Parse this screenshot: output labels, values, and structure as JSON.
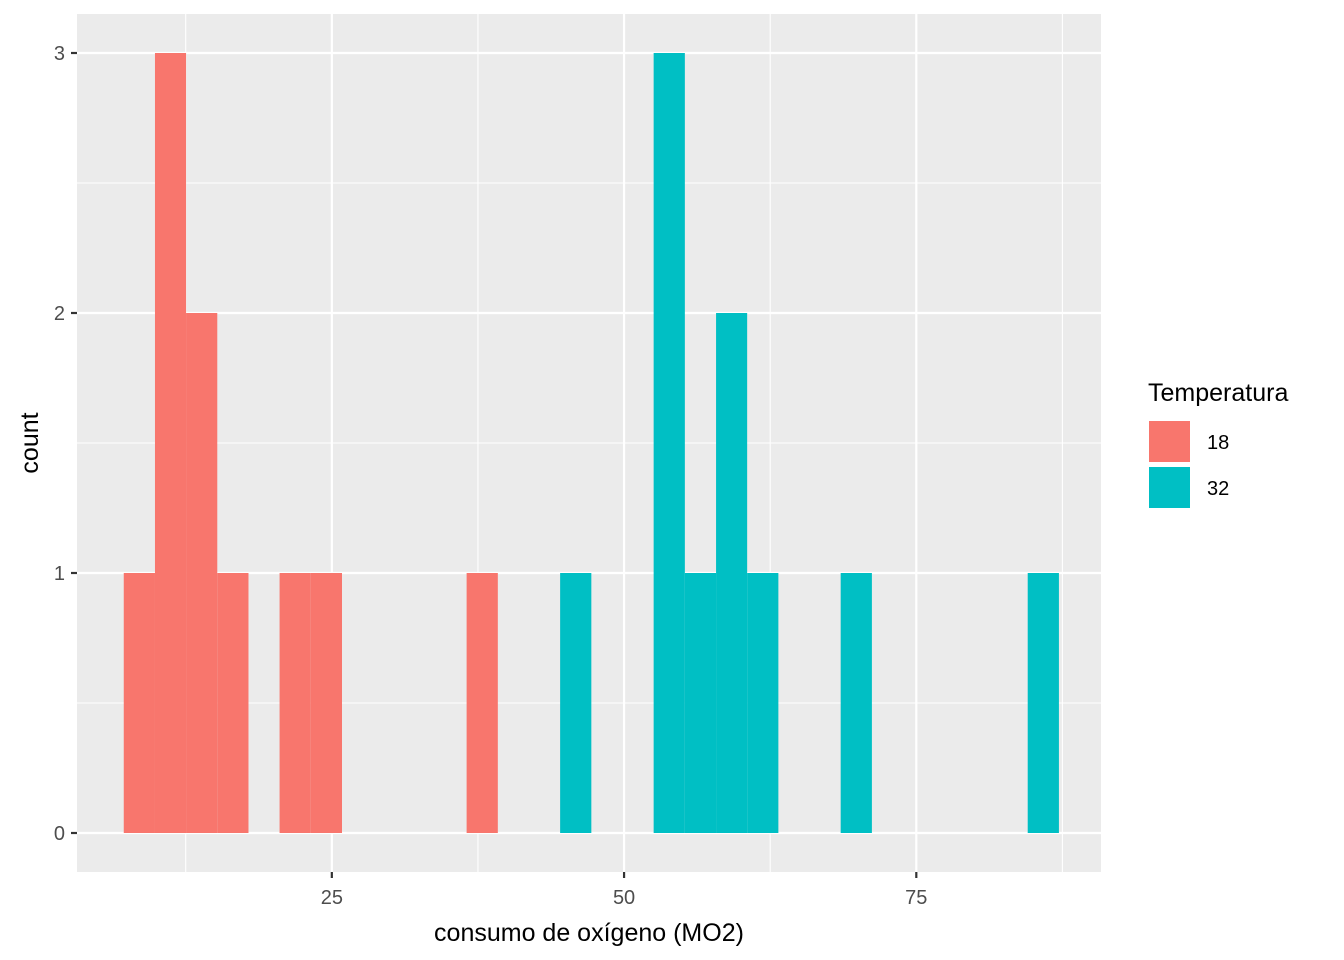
{
  "chart_data": {
    "type": "bar",
    "subtype": "stacked-histogram",
    "title": "",
    "xlabel": "consumo de oxígeno (MO2)",
    "ylabel": "count",
    "xlim": [
      3.2,
      90.8
    ],
    "ylim": [
      -0.15,
      3.15
    ],
    "x_ticks": [
      25,
      50,
      75
    ],
    "y_ticks": [
      0,
      1,
      2,
      3
    ],
    "grid": true,
    "legend": {
      "title": "Temperatura",
      "position": "right"
    },
    "bin_width": 2.67,
    "series": [
      {
        "name": "18",
        "color": "#F8766D",
        "bins": [
          {
            "x0": 7.2,
            "x1": 9.87,
            "count": 1
          },
          {
            "x0": 9.87,
            "x1": 12.53,
            "count": 3
          },
          {
            "x0": 12.53,
            "x1": 15.2,
            "count": 2
          },
          {
            "x0": 15.2,
            "x1": 17.87,
            "count": 1
          },
          {
            "x0": 20.53,
            "x1": 23.2,
            "count": 1
          },
          {
            "x0": 23.2,
            "x1": 25.87,
            "count": 1
          },
          {
            "x0": 36.53,
            "x1": 39.2,
            "count": 1
          }
        ]
      },
      {
        "name": "32",
        "color": "#00BFC4",
        "bins": [
          {
            "x0": 44.53,
            "x1": 47.2,
            "count": 1
          },
          {
            "x0": 52.53,
            "x1": 55.2,
            "count": 3
          },
          {
            "x0": 55.2,
            "x1": 57.87,
            "count": 1
          },
          {
            "x0": 57.87,
            "x1": 60.53,
            "count": 2
          },
          {
            "x0": 60.53,
            "x1": 63.2,
            "count": 1
          },
          {
            "x0": 68.53,
            "x1": 71.2,
            "count": 1
          },
          {
            "x0": 84.53,
            "x1": 87.2,
            "count": 1
          }
        ]
      }
    ]
  }
}
